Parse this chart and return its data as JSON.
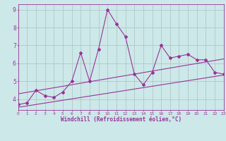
{
  "xlabel": "Windchill (Refroidissement éolien,°C)",
  "x_data": [
    0,
    1,
    2,
    3,
    4,
    5,
    6,
    7,
    8,
    9,
    10,
    11,
    12,
    13,
    14,
    15,
    16,
    17,
    18,
    19,
    20,
    21,
    22,
    23
  ],
  "y_data": [
    3.7,
    3.8,
    4.5,
    4.2,
    4.1,
    4.4,
    5.0,
    6.6,
    5.0,
    6.8,
    9.0,
    8.2,
    7.5,
    5.4,
    4.8,
    5.5,
    7.0,
    6.3,
    6.4,
    6.5,
    6.2,
    6.2,
    5.5,
    5.4
  ],
  "trend1_x": [
    0,
    23
  ],
  "trend1_y": [
    3.55,
    5.35
  ],
  "trend2_x": [
    0,
    23
  ],
  "trend2_y": [
    4.3,
    6.25
  ],
  "line_color": "#993399",
  "bg_color": "#cce8e8",
  "grid_color": "#b0c8c8",
  "xlim": [
    0,
    23
  ],
  "ylim": [
    3.4,
    9.3
  ],
  "xticks": [
    0,
    1,
    2,
    3,
    4,
    5,
    6,
    7,
    8,
    9,
    10,
    11,
    12,
    13,
    14,
    15,
    16,
    17,
    18,
    19,
    20,
    21,
    22,
    23
  ],
  "yticks": [
    4,
    5,
    6,
    7,
    8,
    9
  ],
  "xlabel_fontsize": 5.5,
  "xtick_fontsize": 4.2,
  "ytick_fontsize": 5.5
}
